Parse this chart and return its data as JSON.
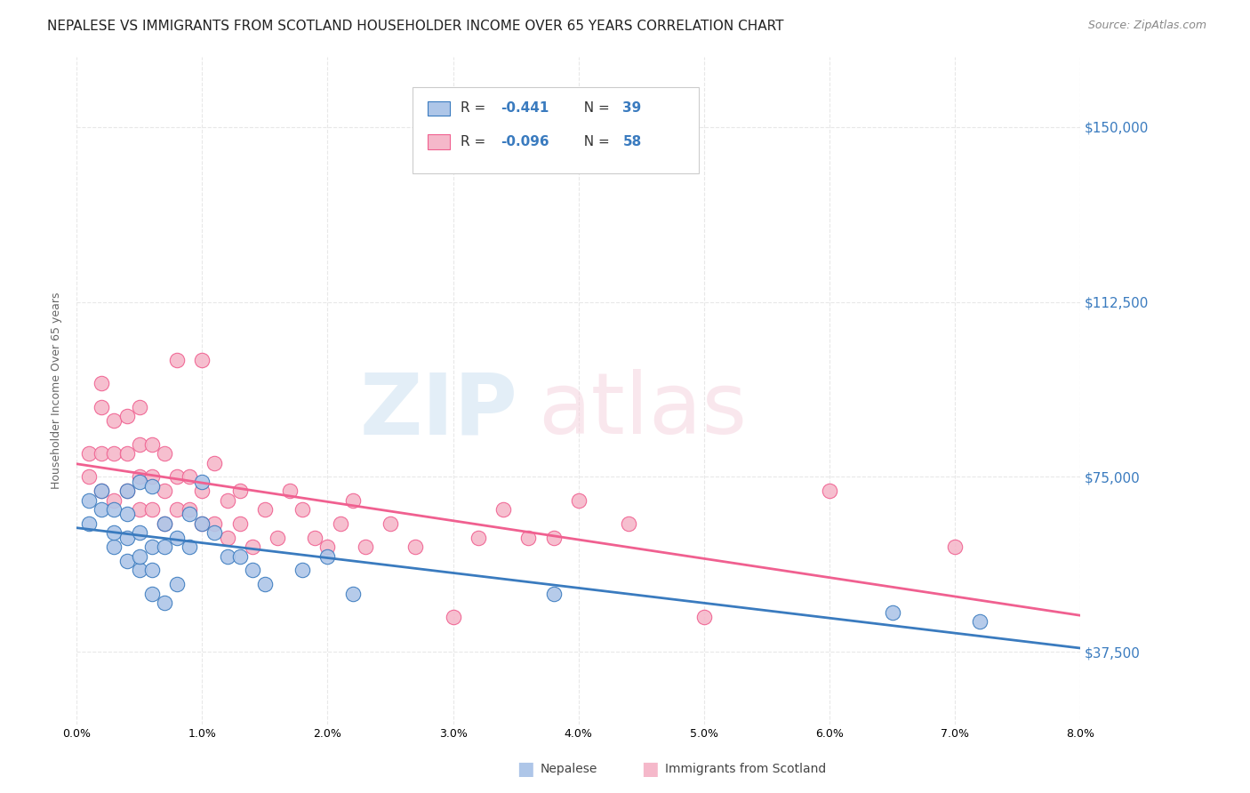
{
  "title": "NEPALESE VS IMMIGRANTS FROM SCOTLAND HOUSEHOLDER INCOME OVER 65 YEARS CORRELATION CHART",
  "source": "Source: ZipAtlas.com",
  "ylabel": "Householder Income Over 65 years",
  "xmin": 0.0,
  "xmax": 0.08,
  "ymin": 22000,
  "ymax": 165000,
  "yticks": [
    37500,
    75000,
    112500,
    150000
  ],
  "ytick_labels": [
    "$37,500",
    "$75,000",
    "$112,500",
    "$150,000"
  ],
  "background_color": "#ffffff",
  "grid_color": "#e8e8e8",
  "nepalese_color": "#aec6e8",
  "scotland_color": "#f5b8ca",
  "nepalese_line_color": "#3a7bbf",
  "scotland_line_color": "#f06090",
  "nepalese_x": [
    0.001,
    0.001,
    0.002,
    0.002,
    0.003,
    0.003,
    0.003,
    0.004,
    0.004,
    0.004,
    0.004,
    0.005,
    0.005,
    0.005,
    0.005,
    0.006,
    0.006,
    0.006,
    0.006,
    0.007,
    0.007,
    0.007,
    0.008,
    0.008,
    0.009,
    0.009,
    0.01,
    0.01,
    0.011,
    0.012,
    0.013,
    0.014,
    0.015,
    0.018,
    0.02,
    0.022,
    0.038,
    0.065,
    0.072
  ],
  "nepalese_y": [
    65000,
    70000,
    68000,
    72000,
    60000,
    63000,
    68000,
    57000,
    62000,
    67000,
    72000,
    55000,
    58000,
    63000,
    74000,
    50000,
    55000,
    60000,
    73000,
    48000,
    60000,
    65000,
    52000,
    62000,
    60000,
    67000,
    65000,
    74000,
    63000,
    58000,
    58000,
    55000,
    52000,
    55000,
    58000,
    50000,
    50000,
    46000,
    44000
  ],
  "scotland_x": [
    0.001,
    0.001,
    0.002,
    0.002,
    0.002,
    0.002,
    0.003,
    0.003,
    0.003,
    0.004,
    0.004,
    0.004,
    0.005,
    0.005,
    0.005,
    0.005,
    0.006,
    0.006,
    0.006,
    0.007,
    0.007,
    0.007,
    0.008,
    0.008,
    0.008,
    0.009,
    0.009,
    0.01,
    0.01,
    0.01,
    0.011,
    0.011,
    0.012,
    0.012,
    0.013,
    0.013,
    0.014,
    0.015,
    0.016,
    0.017,
    0.018,
    0.019,
    0.02,
    0.021,
    0.022,
    0.023,
    0.025,
    0.027,
    0.03,
    0.032,
    0.034,
    0.036,
    0.038,
    0.04,
    0.044,
    0.05,
    0.06,
    0.07
  ],
  "scotland_y": [
    75000,
    80000,
    72000,
    80000,
    90000,
    95000,
    70000,
    80000,
    87000,
    72000,
    80000,
    88000,
    68000,
    75000,
    82000,
    90000,
    68000,
    75000,
    82000,
    65000,
    72000,
    80000,
    68000,
    75000,
    100000,
    68000,
    75000,
    65000,
    72000,
    100000,
    65000,
    78000,
    62000,
    70000,
    65000,
    72000,
    60000,
    68000,
    62000,
    72000,
    68000,
    62000,
    60000,
    65000,
    70000,
    60000,
    65000,
    60000,
    45000,
    62000,
    68000,
    62000,
    62000,
    70000,
    65000,
    45000,
    72000,
    60000
  ],
  "legend_r1_val": "-0.441",
  "legend_n1_val": "39",
  "legend_r2_val": "-0.096",
  "legend_n2_val": "58",
  "title_fontsize": 11,
  "source_fontsize": 9,
  "axis_label_fontsize": 9,
  "tick_fontsize": 9
}
